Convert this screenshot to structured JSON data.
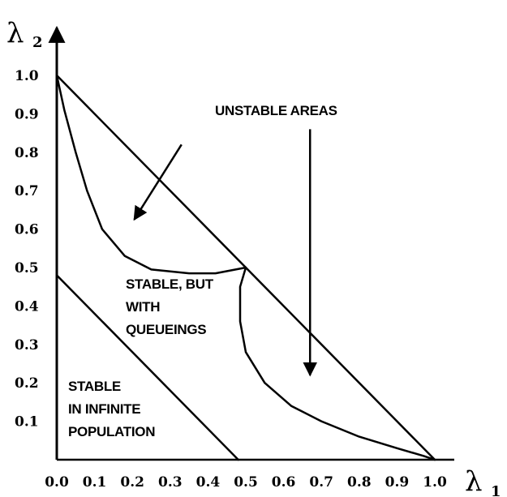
{
  "chart_data": {
    "type": "line",
    "xlabel": "λ",
    "xlabel_sub": "1",
    "ylabel": "λ",
    "ylabel_sub": "2",
    "xlim": [
      0,
      1.0
    ],
    "ylim": [
      0,
      1.0
    ],
    "x_ticks": [
      "0.0",
      "0.1",
      "0.2",
      "0.3",
      "0.4",
      "0.5",
      "0.6",
      "0.7",
      "0.8",
      "0.9",
      "1.0"
    ],
    "y_ticks": [
      "0.1",
      "0.2",
      "0.3",
      "0.4",
      "0.5",
      "0.6",
      "0.7",
      "0.8",
      "0.9",
      "1.0"
    ],
    "grid": false,
    "series": [
      {
        "id": "outer-boundary",
        "points": [
          [
            0.0,
            1.0
          ],
          [
            1.0,
            0.0
          ]
        ]
      },
      {
        "id": "infinite-population-boundary",
        "points": [
          [
            0.0,
            0.48
          ],
          [
            0.48,
            0.0
          ]
        ]
      },
      {
        "id": "stability-boundary-upper",
        "points": [
          [
            0.0,
            1.0
          ],
          [
            0.02,
            0.91
          ],
          [
            0.05,
            0.8
          ],
          [
            0.08,
            0.7
          ],
          [
            0.12,
            0.6
          ],
          [
            0.18,
            0.53
          ],
          [
            0.25,
            0.495
          ],
          [
            0.35,
            0.485
          ],
          [
            0.42,
            0.485
          ],
          [
            0.5,
            0.5
          ]
        ]
      },
      {
        "id": "stability-boundary-lower",
        "points": [
          [
            0.5,
            0.5
          ],
          [
            0.485,
            0.45
          ],
          [
            0.485,
            0.36
          ],
          [
            0.5,
            0.28
          ],
          [
            0.55,
            0.2
          ],
          [
            0.62,
            0.14
          ],
          [
            0.7,
            0.1
          ],
          [
            0.8,
            0.06
          ],
          [
            0.9,
            0.03
          ],
          [
            0.97,
            0.01
          ],
          [
            1.0,
            0.0
          ]
        ]
      }
    ],
    "annotations": [
      {
        "id": "unstable",
        "text": "UNSTABLE AREAS"
      },
      {
        "id": "stable-queue-1",
        "text": "STABLE, BUT"
      },
      {
        "id": "stable-queue-2",
        "text": "WITH"
      },
      {
        "id": "stable-queue-3",
        "text": "QUEUEINGS"
      },
      {
        "id": "stable-inf-1",
        "text": "STABLE"
      },
      {
        "id": "stable-inf-2",
        "text": "IN INFINITE"
      },
      {
        "id": "stable-inf-3",
        "text": "POPULATION"
      }
    ],
    "arrows": [
      {
        "id": "arrow-left",
        "from": [
          0.33,
          0.82
        ],
        "to": [
          0.205,
          0.625
        ]
      },
      {
        "id": "arrow-down",
        "from": [
          0.67,
          0.86
        ],
        "to": [
          0.67,
          0.22
        ]
      }
    ]
  }
}
